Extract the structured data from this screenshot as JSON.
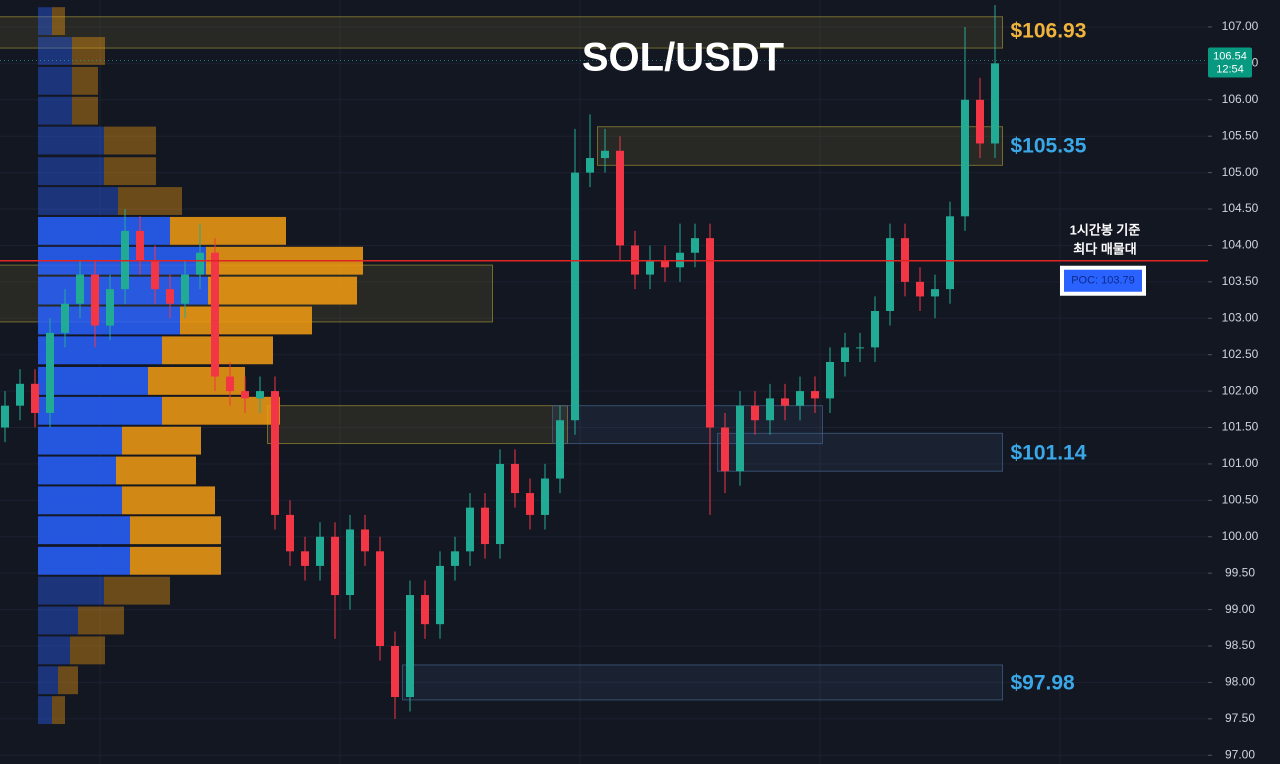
{
  "chart_data": {
    "type": "candlestick",
    "title": "SOL/USDT",
    "ylim": [
      96.88,
      107.37
    ],
    "yticks": [
      {
        "value": 97,
        "label": "97.00"
      },
      {
        "value": 97.5,
        "label": "97.50"
      },
      {
        "value": 98,
        "label": "98.00"
      },
      {
        "value": 98.5,
        "label": "98.50"
      },
      {
        "value": 99,
        "label": "99.00"
      },
      {
        "value": 99.5,
        "label": "99.50"
      },
      {
        "value": 100,
        "label": "100.00"
      },
      {
        "value": 100.5,
        "label": "100.50"
      },
      {
        "value": 101,
        "label": "101.00"
      },
      {
        "value": 101.5,
        "label": "101.50"
      },
      {
        "value": 102,
        "label": "102.00"
      },
      {
        "value": 102.5,
        "label": "102.50"
      },
      {
        "value": 103,
        "label": "103.00"
      },
      {
        "value": 103.5,
        "label": "103.50"
      },
      {
        "value": 104,
        "label": "104.00"
      },
      {
        "value": 104.5,
        "label": "104.50"
      },
      {
        "value": 105,
        "label": "105.00"
      },
      {
        "value": 105.5,
        "label": "105.50"
      },
      {
        "value": 106,
        "label": "106.00"
      },
      {
        "value": 106.5,
        "label": "106.50"
      },
      {
        "value": 107,
        "label": "107.00"
      }
    ],
    "grid": true,
    "up_color": "#22ab94",
    "down_color": "#f23645",
    "candles": {
      "open": [
        101.5,
        101.8,
        102.1,
        101.7,
        102.8,
        103.2,
        103.6,
        102.9,
        103.4,
        104.2,
        103.8,
        103.4,
        103.2,
        103.6,
        103.9,
        102.2,
        102.0,
        101.9,
        102.0,
        100.3,
        99.8,
        99.6,
        100.0,
        99.2,
        100.1,
        99.8,
        98.5,
        97.8,
        99.2,
        98.8,
        99.6,
        99.8,
        100.4,
        99.9,
        101.0,
        100.6,
        100.3,
        100.8,
        101.6,
        105.0,
        105.2,
        105.3,
        104.0,
        103.6,
        103.8,
        103.7,
        103.9,
        104.1,
        101.5,
        100.9,
        101.8,
        101.6,
        101.9,
        101.8,
        102.0,
        101.9,
        102.4,
        102.6,
        102.6,
        103.1,
        104.1,
        103.5,
        103.3,
        103.4,
        104.4,
        106.0,
        105.4
      ],
      "high": [
        102.0,
        102.3,
        102.3,
        103.0,
        103.4,
        103.8,
        103.8,
        103.6,
        104.5,
        104.4,
        104.0,
        103.6,
        103.8,
        104.3,
        104.1,
        102.4,
        102.2,
        102.2,
        102.2,
        100.5,
        100.0,
        100.2,
        100.2,
        100.3,
        100.3,
        100.0,
        98.7,
        99.4,
        99.4,
        99.8,
        100.0,
        100.6,
        100.6,
        101.2,
        101.2,
        100.8,
        101.0,
        101.8,
        105.6,
        105.8,
        105.6,
        105.5,
        104.2,
        104.0,
        104.0,
        104.3,
        104.3,
        104.3,
        101.7,
        102.0,
        102.0,
        102.1,
        102.1,
        102.2,
        102.2,
        102.6,
        102.8,
        102.8,
        103.3,
        104.3,
        104.3,
        103.7,
        103.6,
        104.6,
        107.0,
        106.3,
        107.3
      ],
      "low": [
        101.3,
        101.6,
        101.5,
        101.5,
        102.6,
        103.0,
        102.6,
        102.7,
        103.2,
        103.6,
        103.2,
        103.0,
        103.0,
        103.4,
        102.0,
        101.8,
        101.7,
        101.7,
        100.1,
        99.6,
        99.4,
        99.4,
        98.6,
        99.0,
        99.6,
        98.3,
        97.5,
        97.6,
        98.6,
        98.6,
        99.4,
        99.6,
        99.7,
        99.7,
        100.4,
        100.1,
        100.1,
        100.6,
        101.4,
        104.8,
        105.0,
        103.8,
        103.4,
        103.4,
        103.5,
        103.5,
        103.7,
        100.3,
        100.6,
        100.7,
        101.4,
        101.4,
        101.6,
        101.6,
        101.7,
        101.7,
        102.2,
        102.4,
        102.4,
        102.9,
        103.3,
        103.1,
        103.0,
        103.2,
        104.2,
        105.2,
        105.2
      ],
      "close": [
        101.8,
        102.1,
        101.7,
        102.8,
        103.2,
        103.6,
        102.9,
        103.4,
        104.2,
        103.8,
        103.4,
        103.2,
        103.6,
        103.9,
        102.2,
        102.0,
        101.9,
        102.0,
        100.3,
        99.8,
        99.6,
        100.0,
        99.2,
        100.1,
        99.8,
        98.5,
        97.8,
        99.2,
        98.8,
        99.6,
        99.8,
        100.4,
        99.9,
        101.0,
        100.6,
        100.3,
        100.8,
        101.6,
        105.0,
        105.2,
        105.3,
        104.0,
        103.6,
        103.8,
        103.7,
        103.9,
        104.1,
        101.5,
        100.9,
        101.8,
        101.6,
        101.9,
        101.8,
        102.0,
        101.9,
        102.4,
        102.6,
        102.6,
        103.1,
        104.1,
        103.5,
        103.3,
        103.4,
        104.4,
        106.0,
        105.4,
        106.5
      ]
    },
    "volume_profile": {
      "prices": [
        107.08,
        106.67,
        106.26,
        105.85,
        105.44,
        105.02,
        104.61,
        104.2,
        103.79,
        103.38,
        102.97,
        102.56,
        102.14,
        101.73,
        101.32,
        100.91,
        100.5,
        100.09,
        99.67,
        99.26,
        98.85,
        98.44,
        98.03,
        97.62
      ],
      "buy": [
        14,
        34,
        34,
        34,
        66,
        66,
        80,
        132,
        168,
        170,
        142,
        124,
        110,
        124,
        84,
        78,
        84,
        92,
        92,
        66,
        40,
        32,
        20,
        14
      ],
      "sell": [
        13,
        33,
        26,
        26,
        52,
        52,
        64,
        116,
        157,
        149,
        132,
        111,
        97,
        118,
        79,
        80,
        93,
        91,
        91,
        66,
        46,
        35,
        20,
        13
      ],
      "buy_color": "#2962ff",
      "sell_color": "#f39c12",
      "value_area": [
        99.67,
        104.2
      ]
    },
    "poc": {
      "label": "POC: 103.79",
      "value": 103.79,
      "color": "#e02424"
    },
    "annotations": [
      "1시간봉 기준",
      "최다 매물대"
    ],
    "zones": [
      {
        "label": "$106.93",
        "value": 106.93,
        "top": 107.14,
        "bottom": 106.71,
        "from": 0,
        "to": 66,
        "color": "#8a8030",
        "label_color": "#f0b33c"
      },
      {
        "label": "$105.35",
        "value": 105.35,
        "top": 105.63,
        "bottom": 105.1,
        "from": 40,
        "to": 66,
        "color": "#8a8030",
        "label_color": "#3aa8e8"
      },
      {
        "label": "$101.14",
        "value": 101.14,
        "top": 101.42,
        "bottom": 100.9,
        "from": 48,
        "to": 66,
        "color": "#3d5a80",
        "label_color": "#3aa8e8"
      },
      {
        "label": "$97.98",
        "value": 97.98,
        "top": 98.24,
        "bottom": 97.76,
        "from": 27,
        "to": 66,
        "color": "#3d5a80",
        "label_color": "#3aa8e8"
      },
      {
        "top": 103.73,
        "bottom": 102.95,
        "from": 0,
        "to": 32,
        "color": "#8a8030"
      },
      {
        "top": 101.8,
        "bottom": 101.28,
        "from": 18,
        "to": 37,
        "color": "#8a8030"
      },
      {
        "top": 101.8,
        "bottom": 101.28,
        "from": 37,
        "to": 54,
        "color": "#3d5a80"
      }
    ],
    "last_price": {
      "value": 106.54,
      "time": "12:54"
    }
  }
}
